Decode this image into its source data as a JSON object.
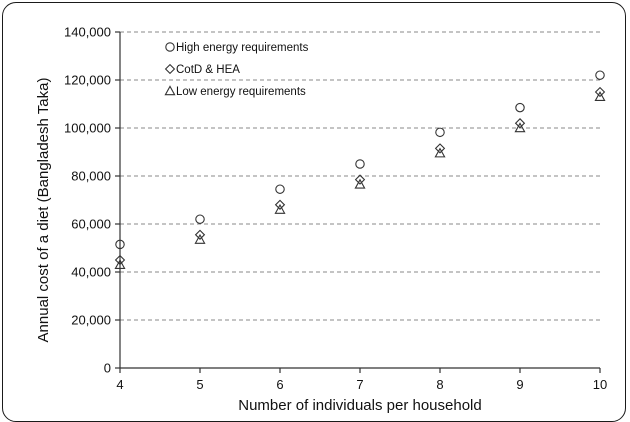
{
  "chart_data": {
    "type": "scatter",
    "title": "",
    "xlabel": "Number of individuals per household",
    "ylabel": "Annual cost of a diet (Bangladesh Taka)",
    "xlim": [
      4,
      10
    ],
    "ylim": [
      0,
      140000
    ],
    "x_ticks": [
      4,
      5,
      6,
      7,
      8,
      9,
      10
    ],
    "y_ticks": [
      0,
      20000,
      40000,
      60000,
      80000,
      100000,
      120000,
      140000
    ],
    "y_tick_labels": [
      "0",
      "20,000",
      "40,000",
      "60,000",
      "80,000",
      "100,000",
      "120,000",
      "140,000"
    ],
    "grid": "horizontal dashed",
    "legend_position": "top-left",
    "x": [
      4,
      5,
      6,
      7,
      8,
      9,
      10
    ],
    "series": [
      {
        "name": "High energy requirements",
        "marker": "circle",
        "values": [
          51500,
          62000,
          74500,
          85000,
          98200,
          108500,
          122000
        ]
      },
      {
        "name": "CotD & HEA",
        "marker": "diamond",
        "values": [
          45000,
          55500,
          68000,
          78500,
          91500,
          102000,
          115000
        ]
      },
      {
        "name": "Low energy requirements",
        "marker": "triangle",
        "values": [
          43000,
          53500,
          66000,
          76500,
          89500,
          100000,
          113000
        ]
      }
    ]
  }
}
